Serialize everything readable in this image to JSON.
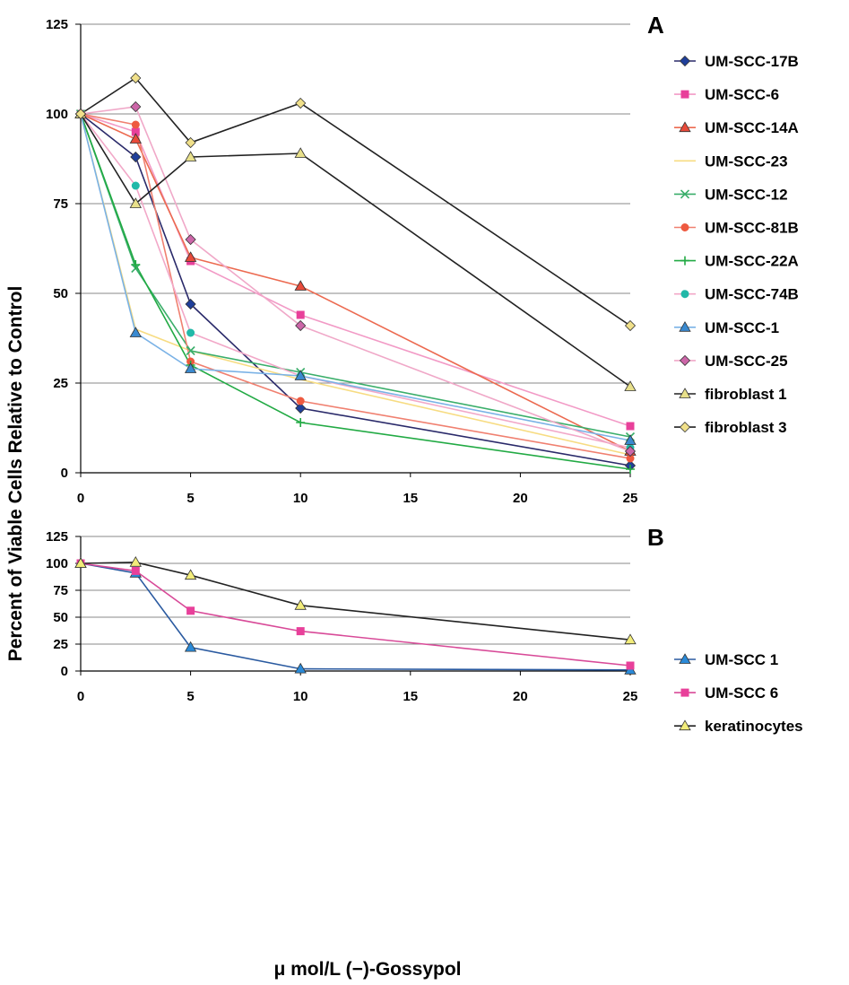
{
  "figure": {
    "ylabel": "Percent of Viable Cells Relative to Control",
    "xlabel": "μ mol/L  (−)-Gossypol"
  },
  "chart_data": [
    {
      "panel": "A",
      "type": "line",
      "xlim": [
        0,
        25
      ],
      "ylim": [
        0,
        125
      ],
      "xticks": [
        0,
        5,
        10,
        15,
        20,
        25
      ],
      "yticks": [
        0,
        25,
        50,
        75,
        100,
        125
      ],
      "grid": "horizontal",
      "legend_position": "right",
      "x": [
        0,
        2.5,
        5,
        10,
        25
      ],
      "series": [
        {
          "name": "UM-SCC-17B",
          "values": [
            100,
            88,
            47,
            18,
            2
          ],
          "color": "#1f3f9a",
          "line": "#2a2a6a",
          "marker": "diamond"
        },
        {
          "name": "UM-SCC-6",
          "values": [
            100,
            95,
            59,
            44,
            13
          ],
          "color": "#e8409a",
          "line": "#f29ac6",
          "marker": "square"
        },
        {
          "name": "UM-SCC-14A",
          "values": [
            100,
            93,
            60,
            52,
            6
          ],
          "color": "#e84a3a",
          "line": "#ec6a50",
          "marker": "triangle"
        },
        {
          "name": "UM-SCC-23",
          "values": [
            100,
            40,
            34,
            26,
            5
          ],
          "color": "#f5d25a",
          "line": "#f7dc82",
          "marker": "none"
        },
        {
          "name": "UM-SCC-12",
          "values": [
            100,
            57,
            34,
            28,
            10
          ],
          "color": "#3aae6a",
          "line": "#3aae6a",
          "marker": "x"
        },
        {
          "name": "UM-SCC-81B",
          "values": [
            100,
            97,
            31,
            20,
            4
          ],
          "color": "#ee5a40",
          "line": "#f08070",
          "marker": "circle"
        },
        {
          "name": "UM-SCC-22A",
          "values": [
            100,
            58,
            30,
            14,
            1
          ],
          "color": "#22aa44",
          "line": "#22aa44",
          "marker": "plus"
        },
        {
          "name": "UM-SCC-74B",
          "values": [
            100,
            80,
            39,
            27,
            7
          ],
          "color": "#22b8a8",
          "line": "#f2a8c8",
          "marker": "circle"
        },
        {
          "name": "UM-SCC-1",
          "values": [
            100,
            39,
            29,
            27,
            9
          ],
          "color": "#3a8ad0",
          "line": "#7ab2e6",
          "marker": "triangle"
        },
        {
          "name": "UM-SCC-25",
          "values": [
            100,
            102,
            65,
            41,
            6
          ],
          "color": "#cc66a8",
          "line": "#f0a8c8",
          "marker": "diamond"
        },
        {
          "name": "fibroblast 1",
          "values": [
            100,
            75,
            88,
            89,
            24
          ],
          "color": "#e8e08a",
          "line": "#222222",
          "marker": "triangle"
        },
        {
          "name": "fibroblast 3",
          "values": [
            100,
            110,
            92,
            103,
            41
          ],
          "color": "#f0e08a",
          "line": "#222222",
          "marker": "diamond"
        }
      ]
    },
    {
      "panel": "B",
      "type": "line",
      "xlim": [
        0,
        25
      ],
      "ylim": [
        0,
        125
      ],
      "xticks": [
        0,
        5,
        10,
        15,
        20,
        25
      ],
      "yticks": [
        0,
        25,
        50,
        75,
        100,
        125
      ],
      "grid": "horizontal",
      "legend_position": "right",
      "x": [
        0,
        2.5,
        5,
        10,
        25
      ],
      "series": [
        {
          "name": "UM-SCC 1",
          "values": [
            100,
            91,
            22,
            2,
            1
          ],
          "color": "#2a8ad8",
          "line": "#2a5aa0",
          "marker": "triangle"
        },
        {
          "name": "UM-SCC 6",
          "values": [
            100,
            93,
            56,
            37,
            5
          ],
          "color": "#e8409a",
          "line": "#d84a98",
          "marker": "square"
        },
        {
          "name": "keratinocytes",
          "values": [
            100,
            101,
            89,
            61,
            29
          ],
          "color": "#f2ec7a",
          "line": "#222222",
          "marker": "triangle"
        }
      ]
    }
  ]
}
